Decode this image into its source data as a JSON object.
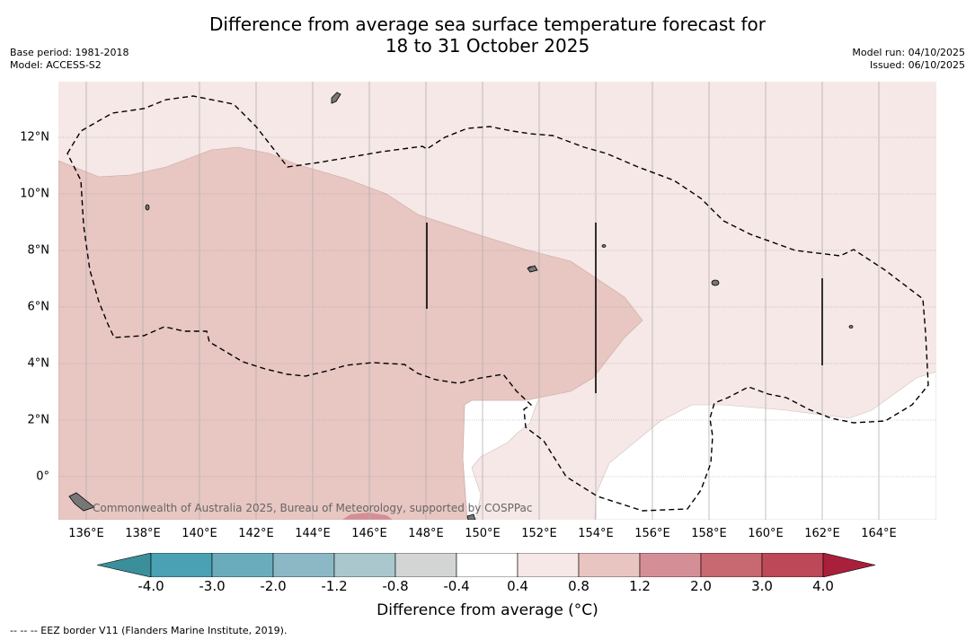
{
  "title_line1": "Difference from average sea surface temperature forecast for",
  "title_line2": "18 to 31 October 2025",
  "base_period": "Base period: 1981-2018",
  "model": "Model: ACCESS-S2",
  "model_run": "Model run: 04/10/2025",
  "issued": "Issued: 06/10/2025",
  "copyright": "Commonwealth of Australia 2025, Bureau of Meteorology, supported by COSPPac",
  "footnote": "--  --  -- EEZ border V11 (Flanders Marine Institute, 2019).",
  "colorbar": {
    "title": "Difference from average (°C)",
    "labels": [
      "-4.0",
      "-3.0",
      "-2.0",
      "-1.2",
      "-0.8",
      "-0.4",
      "0.4",
      "0.8",
      "1.2",
      "2.0",
      "3.0",
      "4.0"
    ],
    "colors": [
      "#3a8f9a",
      "#4aa1b3",
      "#6aacbc",
      "#8bb8c4",
      "#a9c7cc",
      "#d3d5d4",
      "#ffffff",
      "#f5e8e6",
      "#e8c5c1",
      "#d48f96",
      "#c86870",
      "#bd4858",
      "#a8203a"
    ]
  },
  "map": {
    "lon_ticks": [
      "136°E",
      "138°E",
      "140°E",
      "142°E",
      "144°E",
      "146°E",
      "148°E",
      "150°E",
      "152°E",
      "154°E",
      "156°E",
      "158°E",
      "160°E",
      "162°E",
      "164°E"
    ],
    "lat_ticks": [
      "12°N",
      "10°N",
      "8°N",
      "6°N",
      "4°N",
      "2°N",
      "0°"
    ],
    "fill_colors": {
      "low": "#f5e8e6",
      "mid": "#e8c6c2",
      "high": "#d48f96",
      "neutral": "#ffffff"
    }
  }
}
